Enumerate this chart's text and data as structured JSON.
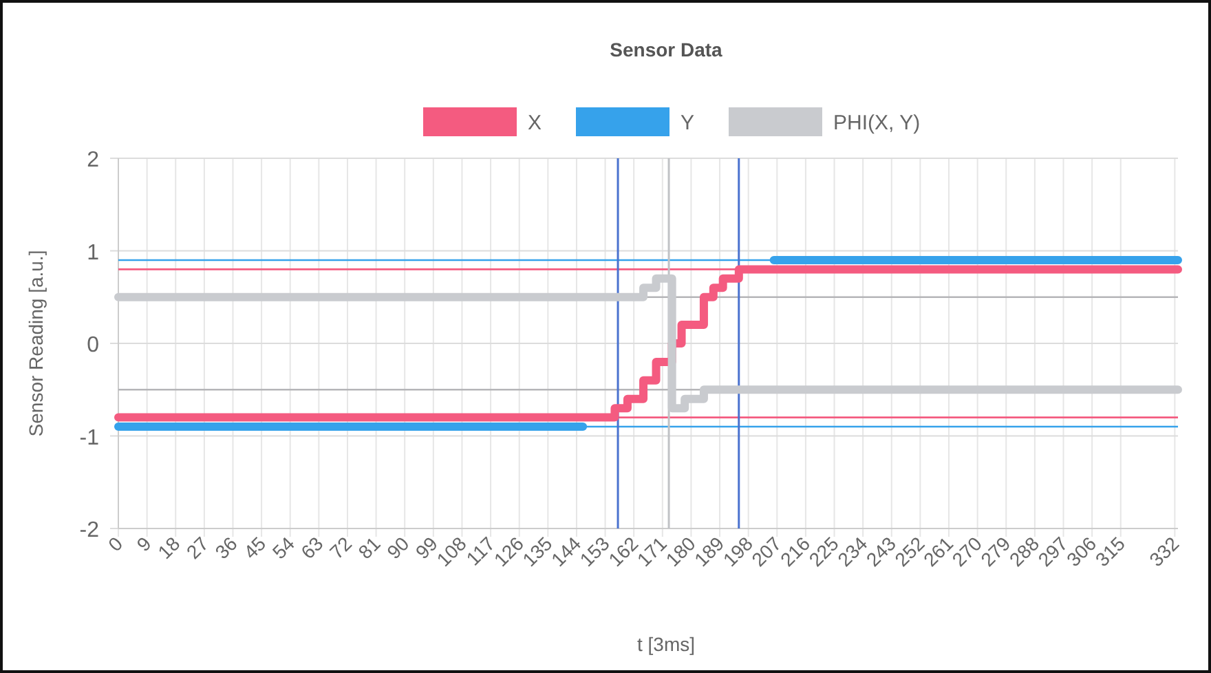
{
  "chart_data": {
    "type": "step",
    "title": "Sensor Data",
    "xlabel": "t [3ms]",
    "ylabel": "Sensor Reading [a.u.]",
    "xlim": [
      0,
      333
    ],
    "xticks": [
      0,
      9,
      18,
      27,
      36,
      45,
      54,
      63,
      72,
      81,
      90,
      99,
      108,
      117,
      126,
      135,
      144,
      153,
      162,
      171,
      180,
      189,
      198,
      207,
      216,
      225,
      234,
      243,
      252,
      261,
      270,
      279,
      288,
      297,
      306,
      315,
      332
    ],
    "ylim": [
      -2,
      2
    ],
    "yticks": [
      -2,
      -1,
      0,
      1,
      2
    ],
    "grid": true,
    "legend": "top",
    "marker": "none",
    "line_style": "solid",
    "series": [
      {
        "name": "X",
        "color": "#f45b80",
        "x": [
          0,
          156,
          160,
          165,
          169,
          174,
          177,
          184,
          187,
          190,
          195,
          333
        ],
        "values": [
          -0.8,
          -0.7,
          -0.6,
          -0.4,
          -0.2,
          0,
          0.2,
          0.5,
          0.6,
          0.7,
          0.8,
          0.8
        ]
      },
      {
        "name": "Y",
        "color": "#36a2eb",
        "x": [
          0,
          146,
          147,
          206,
          333
        ],
        "values": [
          -0.9,
          -0.9,
          null,
          0.9,
          0.9
        ]
      },
      {
        "name": "PHI(X, Y)",
        "color": "#c9cbcf",
        "x": [
          0,
          165,
          169,
          174,
          178,
          184,
          333
        ],
        "values": [
          0.5,
          0.6,
          0.7,
          -0.7,
          -0.6,
          -0.5,
          -0.5
        ]
      }
    ],
    "ref_lines": [
      {
        "axis": "y",
        "value": 0.9,
        "color": "#36a2eb"
      },
      {
        "axis": "y",
        "value": -0.9,
        "color": "#36a2eb"
      },
      {
        "axis": "y",
        "value": 0.8,
        "color": "#f45b80"
      },
      {
        "axis": "y",
        "value": -0.8,
        "color": "#f45b80"
      },
      {
        "axis": "y",
        "value": 0.5,
        "color": "#b5b5b8"
      },
      {
        "axis": "y",
        "value": -0.5,
        "color": "#b5b5b8"
      },
      {
        "axis": "x",
        "value": 157,
        "color": "#4a72cf"
      },
      {
        "axis": "x",
        "value": 195,
        "color": "#4a72cf"
      },
      {
        "axis": "x",
        "value": 173,
        "color": "#c0c2c6"
      }
    ]
  }
}
